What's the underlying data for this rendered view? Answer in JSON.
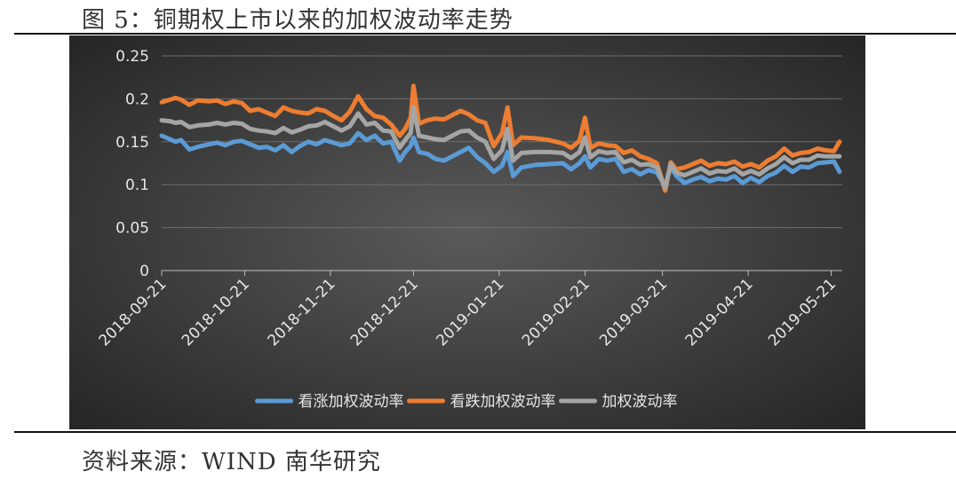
{
  "figure": {
    "title": "图 5：铜期权上市以来的加权波动率走势",
    "source": "资料来源：WIND 南华研究"
  },
  "colors": {
    "background_center": "#5a5a5a",
    "background_edge": "#262626",
    "series": [
      "#5b9bd5",
      "#ed7d31",
      "#a5a5a5"
    ]
  },
  "chart_data": {
    "type": "line",
    "title": "",
    "xlabel": "",
    "ylabel": "",
    "ylim": [
      0,
      0.25
    ],
    "yticks": [
      0,
      0.05,
      0.1,
      0.15,
      0.2,
      0.25
    ],
    "ytick_labels": [
      "0",
      "0.05",
      "0.1",
      "0.15",
      "0.2",
      "0.25"
    ],
    "x_tick_labels": [
      "2018-09-21",
      "2018-10-21",
      "2018-11-21",
      "2018-12-21",
      "2019-01-21",
      "2019-02-21",
      "2019-03-21",
      "2019-04-21",
      "2019-05-21"
    ],
    "x_tick_dates": [
      "2018-09-21",
      "2018-10-21",
      "2018-11-21",
      "2018-12-21",
      "2019-01-21",
      "2019-02-21",
      "2019-03-21",
      "2019-04-21",
      "2019-05-21"
    ],
    "grid": true,
    "legend_position": "bottom",
    "series": [
      {
        "name": "看涨加权波动率",
        "color": "#5b9bd5",
        "points": [
          [
            "2018-09-21",
            0.157
          ],
          [
            "2018-09-24",
            0.153
          ],
          [
            "2018-09-26",
            0.15
          ],
          [
            "2018-09-28",
            0.152
          ],
          [
            "2018-10-01",
            0.141
          ],
          [
            "2018-10-04",
            0.144
          ],
          [
            "2018-10-08",
            0.147
          ],
          [
            "2018-10-11",
            0.149
          ],
          [
            "2018-10-14",
            0.146
          ],
          [
            "2018-10-17",
            0.15
          ],
          [
            "2018-10-20",
            0.151
          ],
          [
            "2018-10-23",
            0.147
          ],
          [
            "2018-10-26",
            0.143
          ],
          [
            "2018-10-29",
            0.144
          ],
          [
            "2018-11-01",
            0.14
          ],
          [
            "2018-11-04",
            0.146
          ],
          [
            "2018-11-07",
            0.138
          ],
          [
            "2018-11-10",
            0.145
          ],
          [
            "2018-11-13",
            0.15
          ],
          [
            "2018-11-16",
            0.147
          ],
          [
            "2018-11-19",
            0.152
          ],
          [
            "2018-11-22",
            0.149
          ],
          [
            "2018-11-25",
            0.146
          ],
          [
            "2018-11-28",
            0.148
          ],
          [
            "2018-12-01",
            0.16
          ],
          [
            "2018-12-04",
            0.152
          ],
          [
            "2018-12-07",
            0.157
          ],
          [
            "2018-12-10",
            0.148
          ],
          [
            "2018-12-13",
            0.15
          ],
          [
            "2018-12-16",
            0.128
          ],
          [
            "2018-12-18",
            0.138
          ],
          [
            "2018-12-20",
            0.145
          ],
          [
            "2018-12-21",
            0.155
          ],
          [
            "2018-12-23",
            0.138
          ],
          [
            "2018-12-26",
            0.136
          ],
          [
            "2018-12-29",
            0.13
          ],
          [
            "2019-01-01",
            0.128
          ],
          [
            "2019-01-04",
            0.133
          ],
          [
            "2019-01-07",
            0.138
          ],
          [
            "2019-01-10",
            0.143
          ],
          [
            "2019-01-13",
            0.132
          ],
          [
            "2019-01-16",
            0.125
          ],
          [
            "2019-01-19",
            0.115
          ],
          [
            "2019-01-22",
            0.122
          ],
          [
            "2019-01-24",
            0.138
          ],
          [
            "2019-01-26",
            0.11
          ],
          [
            "2019-01-29",
            0.12
          ],
          [
            "2019-02-03",
            0.123
          ],
          [
            "2019-02-08",
            0.124
          ],
          [
            "2019-02-13",
            0.125
          ],
          [
            "2019-02-16",
            0.118
          ],
          [
            "2019-02-19",
            0.125
          ],
          [
            "2019-02-21",
            0.133
          ],
          [
            "2019-02-23",
            0.12
          ],
          [
            "2019-02-26",
            0.13
          ],
          [
            "2019-03-01",
            0.128
          ],
          [
            "2019-03-04",
            0.13
          ],
          [
            "2019-03-07",
            0.115
          ],
          [
            "2019-03-10",
            0.118
          ],
          [
            "2019-03-13",
            0.112
          ],
          [
            "2019-03-16",
            0.117
          ],
          [
            "2019-03-19",
            0.114
          ],
          [
            "2019-03-22",
            0.098
          ],
          [
            "2019-03-24",
            0.121
          ],
          [
            "2019-03-26",
            0.11
          ],
          [
            "2019-03-29",
            0.102
          ],
          [
            "2019-04-01",
            0.106
          ],
          [
            "2019-04-04",
            0.109
          ],
          [
            "2019-04-07",
            0.104
          ],
          [
            "2019-04-10",
            0.107
          ],
          [
            "2019-04-13",
            0.106
          ],
          [
            "2019-04-16",
            0.11
          ],
          [
            "2019-04-19",
            0.102
          ],
          [
            "2019-04-22",
            0.108
          ],
          [
            "2019-04-25",
            0.103
          ],
          [
            "2019-04-28",
            0.11
          ],
          [
            "2019-05-01",
            0.114
          ],
          [
            "2019-05-04",
            0.122
          ],
          [
            "2019-05-07",
            0.115
          ],
          [
            "2019-05-10",
            0.121
          ],
          [
            "2019-05-13",
            0.12
          ],
          [
            "2019-05-16",
            0.125
          ],
          [
            "2019-05-19",
            0.126
          ],
          [
            "2019-05-22",
            0.127
          ],
          [
            "2019-05-24",
            0.115
          ]
        ]
      },
      {
        "name": "看跌加权波动率",
        "color": "#ed7d31",
        "points": [
          [
            "2018-09-21",
            0.196
          ],
          [
            "2018-09-24",
            0.199
          ],
          [
            "2018-09-26",
            0.201
          ],
          [
            "2018-09-28",
            0.199
          ],
          [
            "2018-10-01",
            0.193
          ],
          [
            "2018-10-04",
            0.198
          ],
          [
            "2018-10-08",
            0.197
          ],
          [
            "2018-10-11",
            0.198
          ],
          [
            "2018-10-14",
            0.194
          ],
          [
            "2018-10-17",
            0.197
          ],
          [
            "2018-10-20",
            0.195
          ],
          [
            "2018-10-23",
            0.186
          ],
          [
            "2018-10-26",
            0.188
          ],
          [
            "2018-10-29",
            0.184
          ],
          [
            "2018-11-01",
            0.18
          ],
          [
            "2018-11-04",
            0.19
          ],
          [
            "2018-11-07",
            0.186
          ],
          [
            "2018-11-10",
            0.184
          ],
          [
            "2018-11-13",
            0.183
          ],
          [
            "2018-11-16",
            0.188
          ],
          [
            "2018-11-19",
            0.186
          ],
          [
            "2018-11-22",
            0.18
          ],
          [
            "2018-11-25",
            0.175
          ],
          [
            "2018-11-28",
            0.185
          ],
          [
            "2018-12-01",
            0.203
          ],
          [
            "2018-12-04",
            0.188
          ],
          [
            "2018-12-07",
            0.18
          ],
          [
            "2018-12-10",
            0.178
          ],
          [
            "2018-12-13",
            0.17
          ],
          [
            "2018-12-16",
            0.157
          ],
          [
            "2018-12-18",
            0.165
          ],
          [
            "2018-12-20",
            0.178
          ],
          [
            "2018-12-21",
            0.215
          ],
          [
            "2018-12-23",
            0.171
          ],
          [
            "2018-12-26",
            0.175
          ],
          [
            "2018-12-29",
            0.177
          ],
          [
            "2019-01-01",
            0.176
          ],
          [
            "2019-01-04",
            0.181
          ],
          [
            "2019-01-07",
            0.186
          ],
          [
            "2019-01-10",
            0.182
          ],
          [
            "2019-01-13",
            0.175
          ],
          [
            "2019-01-16",
            0.172
          ],
          [
            "2019-01-19",
            0.145
          ],
          [
            "2019-01-22",
            0.16
          ],
          [
            "2019-01-24",
            0.19
          ],
          [
            "2019-01-26",
            0.146
          ],
          [
            "2019-01-29",
            0.155
          ],
          [
            "2019-02-03",
            0.154
          ],
          [
            "2019-02-08",
            0.152
          ],
          [
            "2019-02-13",
            0.148
          ],
          [
            "2019-02-16",
            0.143
          ],
          [
            "2019-02-19",
            0.151
          ],
          [
            "2019-02-21",
            0.178
          ],
          [
            "2019-02-23",
            0.143
          ],
          [
            "2019-02-26",
            0.148
          ],
          [
            "2019-03-01",
            0.146
          ],
          [
            "2019-03-04",
            0.145
          ],
          [
            "2019-03-07",
            0.137
          ],
          [
            "2019-03-10",
            0.14
          ],
          [
            "2019-03-13",
            0.133
          ],
          [
            "2019-03-16",
            0.13
          ],
          [
            "2019-03-19",
            0.125
          ],
          [
            "2019-03-22",
            0.093
          ],
          [
            "2019-03-24",
            0.126
          ],
          [
            "2019-03-26",
            0.118
          ],
          [
            "2019-03-29",
            0.12
          ],
          [
            "2019-04-01",
            0.124
          ],
          [
            "2019-04-04",
            0.128
          ],
          [
            "2019-04-07",
            0.122
          ],
          [
            "2019-04-10",
            0.125
          ],
          [
            "2019-04-13",
            0.124
          ],
          [
            "2019-04-16",
            0.127
          ],
          [
            "2019-04-19",
            0.121
          ],
          [
            "2019-04-22",
            0.124
          ],
          [
            "2019-04-25",
            0.12
          ],
          [
            "2019-04-28",
            0.128
          ],
          [
            "2019-05-01",
            0.133
          ],
          [
            "2019-05-04",
            0.142
          ],
          [
            "2019-05-07",
            0.134
          ],
          [
            "2019-05-10",
            0.137
          ],
          [
            "2019-05-13",
            0.138
          ],
          [
            "2019-05-16",
            0.142
          ],
          [
            "2019-05-19",
            0.14
          ],
          [
            "2019-05-22",
            0.139
          ],
          [
            "2019-05-24",
            0.15
          ]
        ]
      },
      {
        "name": "加权波动率",
        "color": "#a5a5a5",
        "points": [
          [
            "2018-09-21",
            0.175
          ],
          [
            "2018-09-24",
            0.174
          ],
          [
            "2018-09-26",
            0.172
          ],
          [
            "2018-09-28",
            0.173
          ],
          [
            "2018-10-01",
            0.167
          ],
          [
            "2018-10-04",
            0.169
          ],
          [
            "2018-10-08",
            0.17
          ],
          [
            "2018-10-11",
            0.172
          ],
          [
            "2018-10-14",
            0.17
          ],
          [
            "2018-10-17",
            0.172
          ],
          [
            "2018-10-20",
            0.171
          ],
          [
            "2018-10-23",
            0.165
          ],
          [
            "2018-10-26",
            0.163
          ],
          [
            "2018-10-29",
            0.162
          ],
          [
            "2018-11-01",
            0.16
          ],
          [
            "2018-11-04",
            0.166
          ],
          [
            "2018-11-07",
            0.161
          ],
          [
            "2018-11-10",
            0.164
          ],
          [
            "2018-11-13",
            0.168
          ],
          [
            "2018-11-16",
            0.169
          ],
          [
            "2018-11-19",
            0.173
          ],
          [
            "2018-11-22",
            0.168
          ],
          [
            "2018-11-25",
            0.163
          ],
          [
            "2018-11-28",
            0.168
          ],
          [
            "2018-12-01",
            0.183
          ],
          [
            "2018-12-04",
            0.17
          ],
          [
            "2018-12-07",
            0.172
          ],
          [
            "2018-12-10",
            0.163
          ],
          [
            "2018-12-13",
            0.162
          ],
          [
            "2018-12-16",
            0.143
          ],
          [
            "2018-12-18",
            0.152
          ],
          [
            "2018-12-20",
            0.16
          ],
          [
            "2018-12-21",
            0.19
          ],
          [
            "2018-12-23",
            0.157
          ],
          [
            "2018-12-26",
            0.155
          ],
          [
            "2018-12-29",
            0.153
          ],
          [
            "2019-01-01",
            0.152
          ],
          [
            "2019-01-04",
            0.157
          ],
          [
            "2019-01-07",
            0.162
          ],
          [
            "2019-01-10",
            0.163
          ],
          [
            "2019-01-13",
            0.155
          ],
          [
            "2019-01-16",
            0.15
          ],
          [
            "2019-01-19",
            0.13
          ],
          [
            "2019-01-22",
            0.14
          ],
          [
            "2019-01-24",
            0.165
          ],
          [
            "2019-01-26",
            0.128
          ],
          [
            "2019-01-29",
            0.137
          ],
          [
            "2019-02-03",
            0.138
          ],
          [
            "2019-02-08",
            0.138
          ],
          [
            "2019-02-13",
            0.137
          ],
          [
            "2019-02-16",
            0.131
          ],
          [
            "2019-02-19",
            0.138
          ],
          [
            "2019-02-21",
            0.155
          ],
          [
            "2019-02-23",
            0.132
          ],
          [
            "2019-02-26",
            0.139
          ],
          [
            "2019-03-01",
            0.137
          ],
          [
            "2019-03-04",
            0.138
          ],
          [
            "2019-03-07",
            0.126
          ],
          [
            "2019-03-10",
            0.129
          ],
          [
            "2019-03-13",
            0.123
          ],
          [
            "2019-03-16",
            0.124
          ],
          [
            "2019-03-19",
            0.12
          ],
          [
            "2019-03-22",
            0.096
          ],
          [
            "2019-03-24",
            0.124
          ],
          [
            "2019-03-26",
            0.114
          ],
          [
            "2019-03-29",
            0.111
          ],
          [
            "2019-04-01",
            0.115
          ],
          [
            "2019-04-04",
            0.119
          ],
          [
            "2019-04-07",
            0.113
          ],
          [
            "2019-04-10",
            0.116
          ],
          [
            "2019-04-13",
            0.115
          ],
          [
            "2019-04-16",
            0.119
          ],
          [
            "2019-04-19",
            0.112
          ],
          [
            "2019-04-22",
            0.116
          ],
          [
            "2019-04-25",
            0.112
          ],
          [
            "2019-04-28",
            0.119
          ],
          [
            "2019-05-01",
            0.124
          ],
          [
            "2019-05-04",
            0.132
          ],
          [
            "2019-05-07",
            0.125
          ],
          [
            "2019-05-10",
            0.129
          ],
          [
            "2019-05-13",
            0.129
          ],
          [
            "2019-05-16",
            0.134
          ],
          [
            "2019-05-19",
            0.133
          ],
          [
            "2019-05-22",
            0.133
          ],
          [
            "2019-05-24",
            0.133
          ]
        ]
      }
    ]
  }
}
